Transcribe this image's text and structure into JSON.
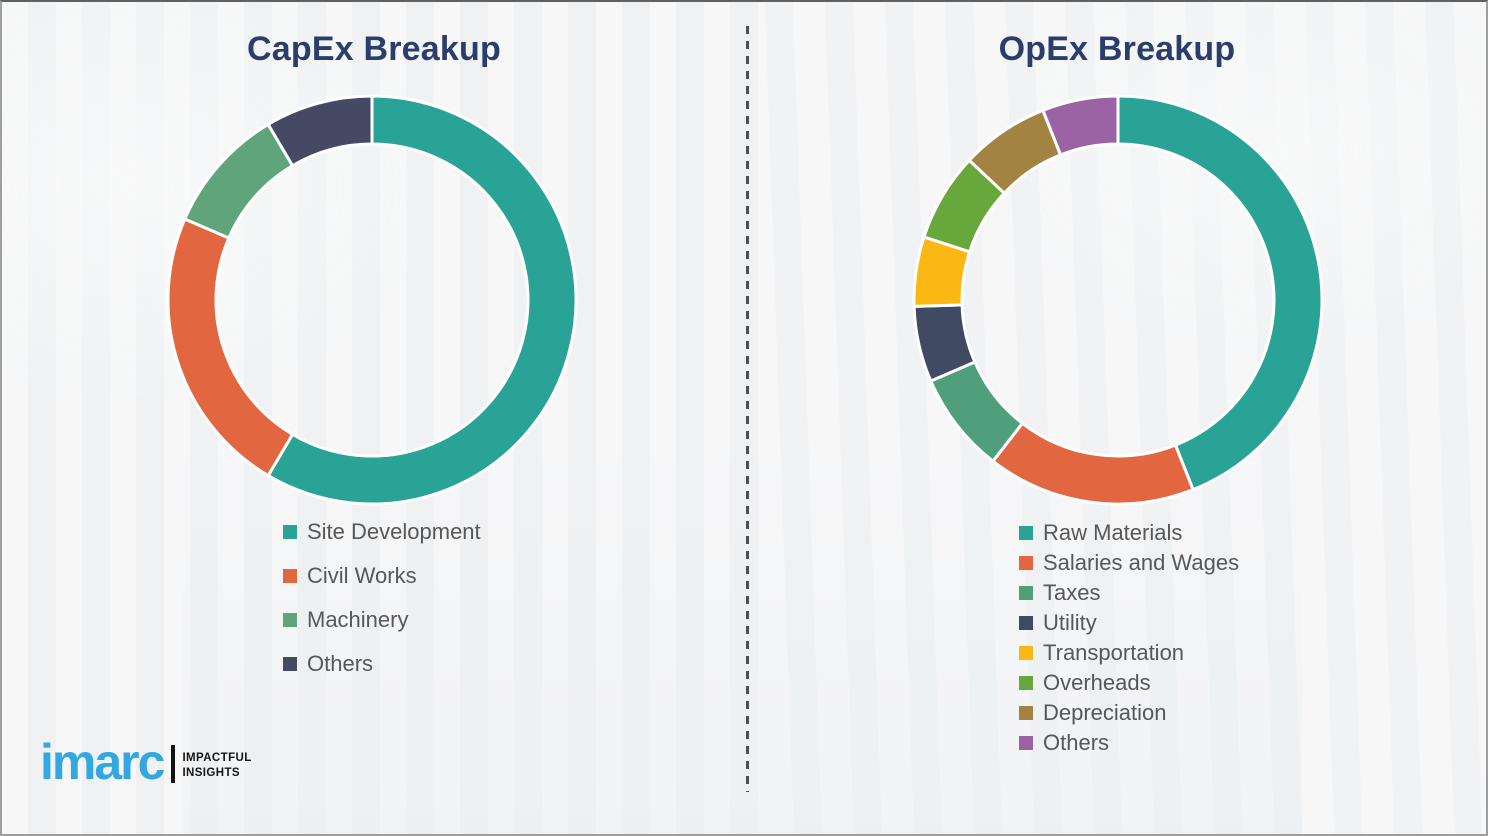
{
  "chart_data": [
    {
      "type": "pie",
      "variant": "donut",
      "title": "CapEx Breakup",
      "legend_position": "below-left",
      "values_are_estimated_percent": true,
      "segments": [
        {
          "label": "Site Development",
          "value": 58.5,
          "color": "#29a396"
        },
        {
          "label": "Civil Works",
          "value": 23.0,
          "color": "#e2663f"
        },
        {
          "label": "Machinery",
          "value": 10.0,
          "color": "#60a47b"
        },
        {
          "label": "Others",
          "value": 8.5,
          "color": "#454a64"
        }
      ]
    },
    {
      "type": "pie",
      "variant": "donut",
      "title": "OpEx Breakup",
      "legend_position": "below-left",
      "values_are_estimated_percent": true,
      "segments": [
        {
          "label": "Raw Materials",
          "value": 44.0,
          "color": "#29a396"
        },
        {
          "label": "Salaries and Wages",
          "value": 16.5,
          "color": "#e2663f"
        },
        {
          "label": "Taxes",
          "value": 8.0,
          "color": "#4fa07a"
        },
        {
          "label": "Utility",
          "value": 6.0,
          "color": "#414a63"
        },
        {
          "label": "Transportation",
          "value": 5.5,
          "color": "#fbb713"
        },
        {
          "label": "Overheads",
          "value": 7.0,
          "color": "#67a73b"
        },
        {
          "label": "Depreciation",
          "value": 7.0,
          "color": "#a28342"
        },
        {
          "label": "Others",
          "value": 6.0,
          "color": "#9c63a4"
        }
      ]
    }
  ],
  "titles": {
    "capex": "CapEx Breakup",
    "opex": "OpEx Breakup"
  },
  "logo": {
    "brand": "imarc",
    "tagline_line1": "IMPACTFUL",
    "tagline_line2": "INSIGHTS",
    "brand_color": "#33a7e0"
  },
  "style": {
    "title_color": "#2b3e6b",
    "legend_text_color": "#575757",
    "background": "#f3f4f5"
  }
}
